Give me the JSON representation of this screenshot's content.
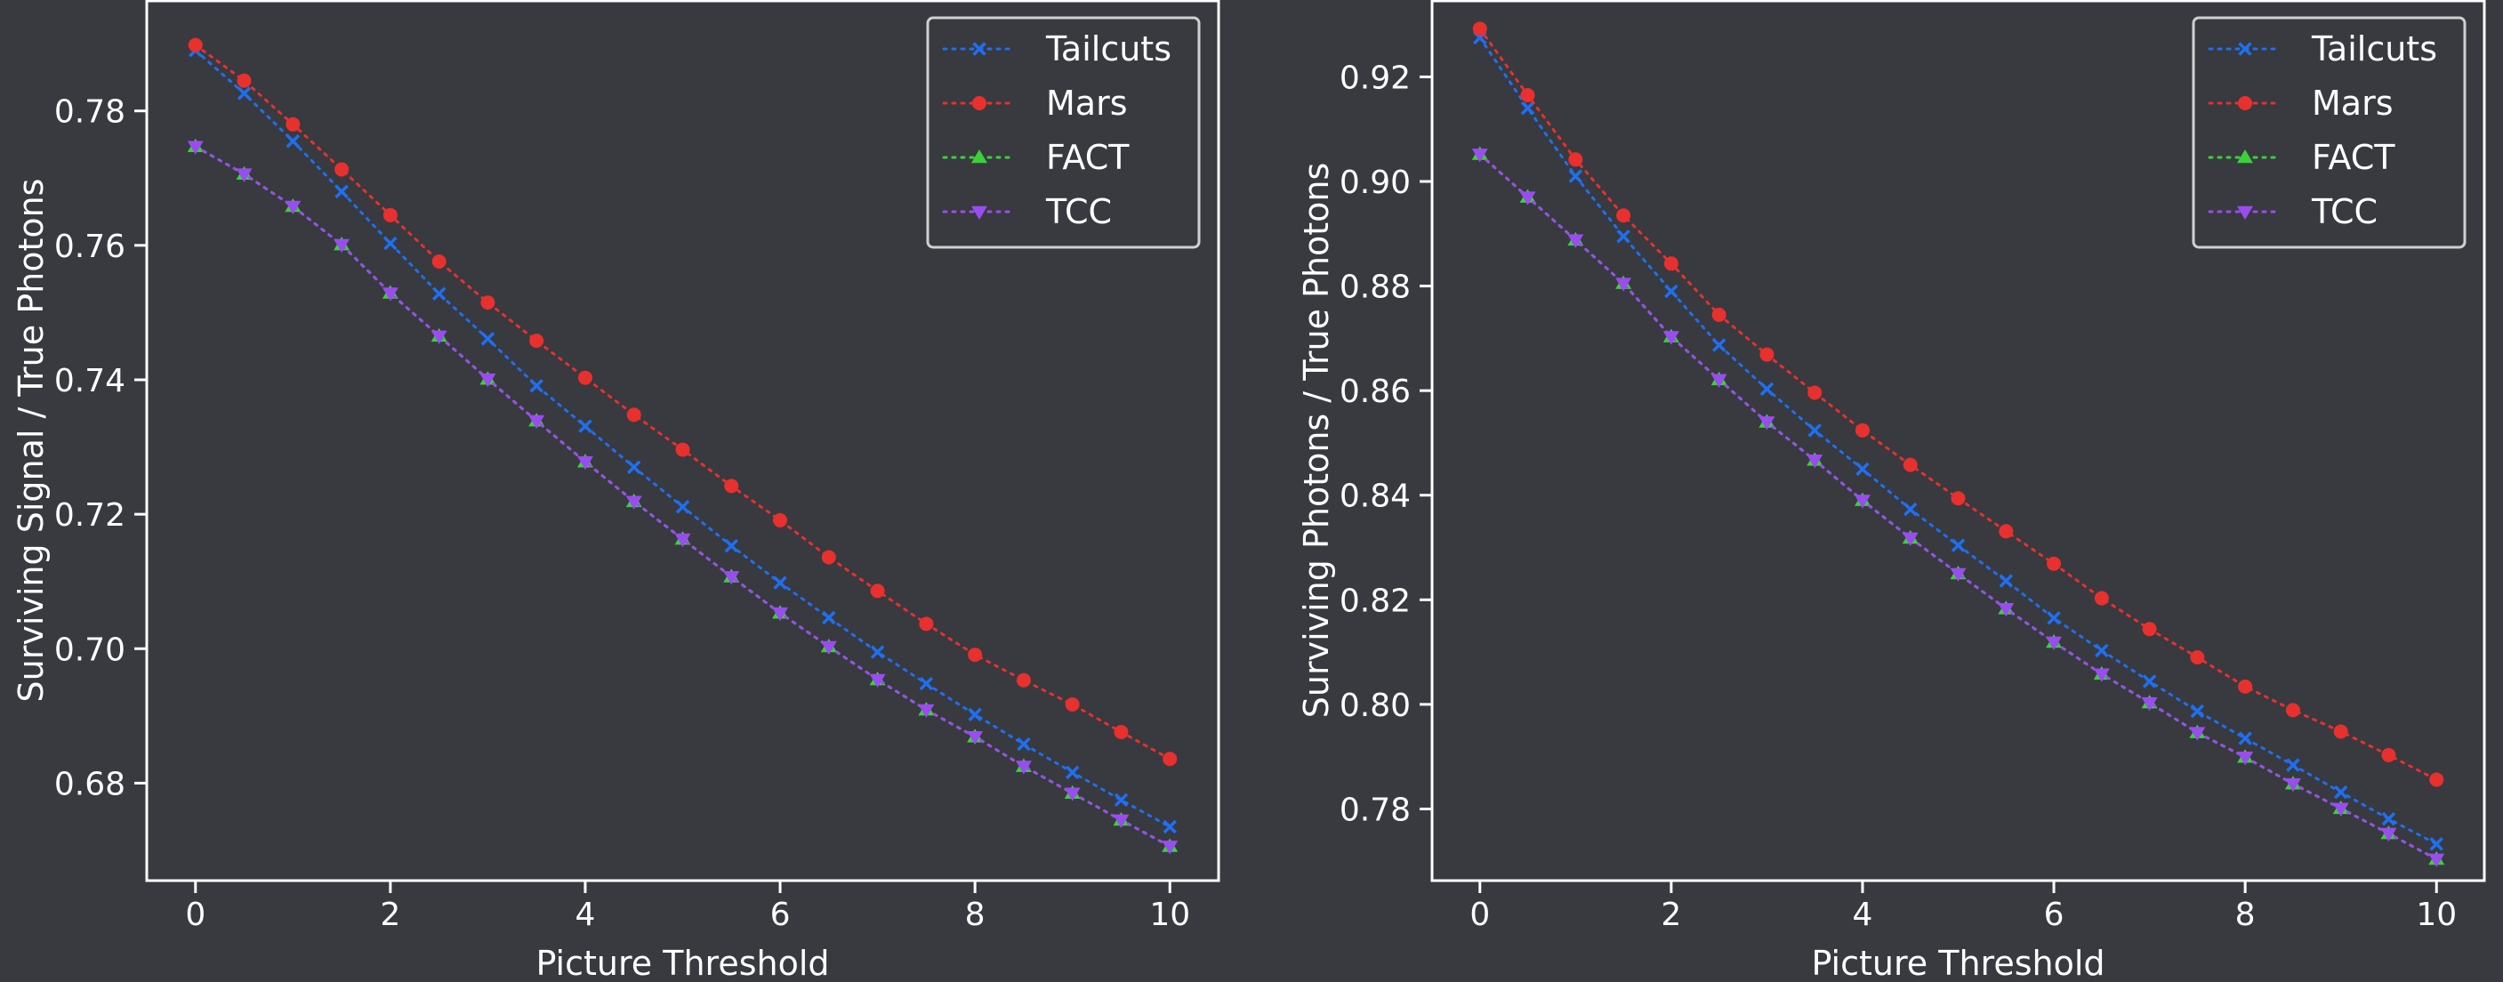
{
  "background": "#383a3f",
  "chart_data": [
    {
      "type": "line",
      "xlabel": "Picture Threshold",
      "ylabel": "Surviving Signal / True Photons",
      "xlim": [
        -0.5,
        10.5
      ],
      "ylim": [
        0.6655,
        0.7965
      ],
      "xticks": [
        0,
        2,
        4,
        6,
        8,
        10
      ],
      "yticks": [
        0.68,
        0.7,
        0.72,
        0.74,
        0.76,
        0.78
      ],
      "tick_decimals": 2,
      "legend_position": "top-right",
      "grid": false,
      "x": [
        0,
        0.5,
        1,
        1.5,
        2,
        2.5,
        3,
        3.5,
        4,
        4.5,
        5,
        5.5,
        6,
        6.5,
        7,
        7.5,
        8,
        8.5,
        9,
        9.5,
        10
      ],
      "series": [
        {
          "name": "Tailcuts",
          "color": "#1f6ff0",
          "marker": "x",
          "values": [
            0.789,
            0.7826,
            0.7755,
            0.768,
            0.7603,
            0.7528,
            0.7461,
            0.7391,
            0.7331,
            0.727,
            0.7211,
            0.7153,
            0.7098,
            0.7046,
            0.6995,
            0.6948,
            0.6902,
            0.6858,
            0.6816,
            0.6775,
            0.6735
          ]
        },
        {
          "name": "Mars",
          "color": "#e8302e",
          "marker": "circle",
          "values": [
            0.7898,
            0.7845,
            0.778,
            0.7713,
            0.7645,
            0.7576,
            0.7515,
            0.7458,
            0.7403,
            0.7348,
            0.7296,
            0.7242,
            0.7191,
            0.7136,
            0.7086,
            0.7037,
            0.6991,
            0.6953,
            0.6917,
            0.6876,
            0.6836
          ]
        },
        {
          "name": "FACT",
          "color": "#3ad13a",
          "marker": "triangle-up",
          "values": [
            0.7747,
            0.7706,
            0.7658,
            0.7601,
            0.7529,
            0.7465,
            0.7401,
            0.7339,
            0.7278,
            0.7219,
            0.7163,
            0.7107,
            0.7053,
            0.7003,
            0.6954,
            0.6909,
            0.6869,
            0.6825,
            0.6785,
            0.6745,
            0.6706
          ]
        },
        {
          "name": "TCC",
          "color": "#9a4cf0",
          "marker": "triangle-down",
          "values": [
            0.7747,
            0.7706,
            0.7658,
            0.7601,
            0.7529,
            0.7465,
            0.7401,
            0.7339,
            0.7278,
            0.7219,
            0.7163,
            0.7107,
            0.7053,
            0.7003,
            0.6954,
            0.6909,
            0.6869,
            0.6825,
            0.6785,
            0.6745,
            0.6706
          ]
        }
      ]
    },
    {
      "type": "line",
      "xlabel": "Picture Threshold",
      "ylabel": "Surviving Photons / True Photons",
      "xlim": [
        -0.5,
        10.5
      ],
      "ylim": [
        0.7663,
        0.9347
      ],
      "xticks": [
        0,
        2,
        4,
        6,
        8,
        10
      ],
      "yticks": [
        0.78,
        0.8,
        0.82,
        0.84,
        0.86,
        0.88,
        0.9,
        0.92
      ],
      "tick_decimals": 2,
      "legend_position": "top-right",
      "grid": false,
      "x": [
        0,
        0.5,
        1,
        1.5,
        2,
        2.5,
        3,
        3.5,
        4,
        4.5,
        5,
        5.5,
        6,
        6.5,
        7,
        7.5,
        8,
        8.5,
        9,
        9.5,
        10
      ],
      "series": [
        {
          "name": "Tailcuts",
          "color": "#1f6ff0",
          "marker": "x",
          "values": [
            0.9275,
            0.914,
            0.901,
            0.8895,
            0.879,
            0.8687,
            0.8603,
            0.8524,
            0.845,
            0.8373,
            0.8304,
            0.8236,
            0.8165,
            0.8103,
            0.8044,
            0.7987,
            0.7935,
            0.7884,
            0.7832,
            0.7781,
            0.7733
          ]
        },
        {
          "name": "Mars",
          "color": "#e8302e",
          "marker": "circle",
          "values": [
            0.9292,
            0.9165,
            0.9042,
            0.8935,
            0.8843,
            0.8745,
            0.8669,
            0.8596,
            0.8524,
            0.8458,
            0.8394,
            0.8331,
            0.8269,
            0.8203,
            0.8144,
            0.809,
            0.8034,
            0.7989,
            0.7948,
            0.7903,
            0.7856
          ]
        },
        {
          "name": "FACT",
          "color": "#3ad13a",
          "marker": "triangle-up",
          "values": [
            0.9052,
            0.897,
            0.8888,
            0.8805,
            0.8703,
            0.8621,
            0.854,
            0.8467,
            0.839,
            0.8318,
            0.825,
            0.8183,
            0.8119,
            0.8058,
            0.8003,
            0.7946,
            0.7899,
            0.7848,
            0.7801,
            0.7753,
            0.7704
          ]
        },
        {
          "name": "TCC",
          "color": "#9a4cf0",
          "marker": "triangle-down",
          "values": [
            0.9052,
            0.897,
            0.8888,
            0.8805,
            0.8703,
            0.8621,
            0.854,
            0.8467,
            0.839,
            0.8318,
            0.825,
            0.8183,
            0.8119,
            0.8058,
            0.8003,
            0.7946,
            0.7899,
            0.7848,
            0.7801,
            0.7753,
            0.7704
          ]
        }
      ]
    }
  ]
}
